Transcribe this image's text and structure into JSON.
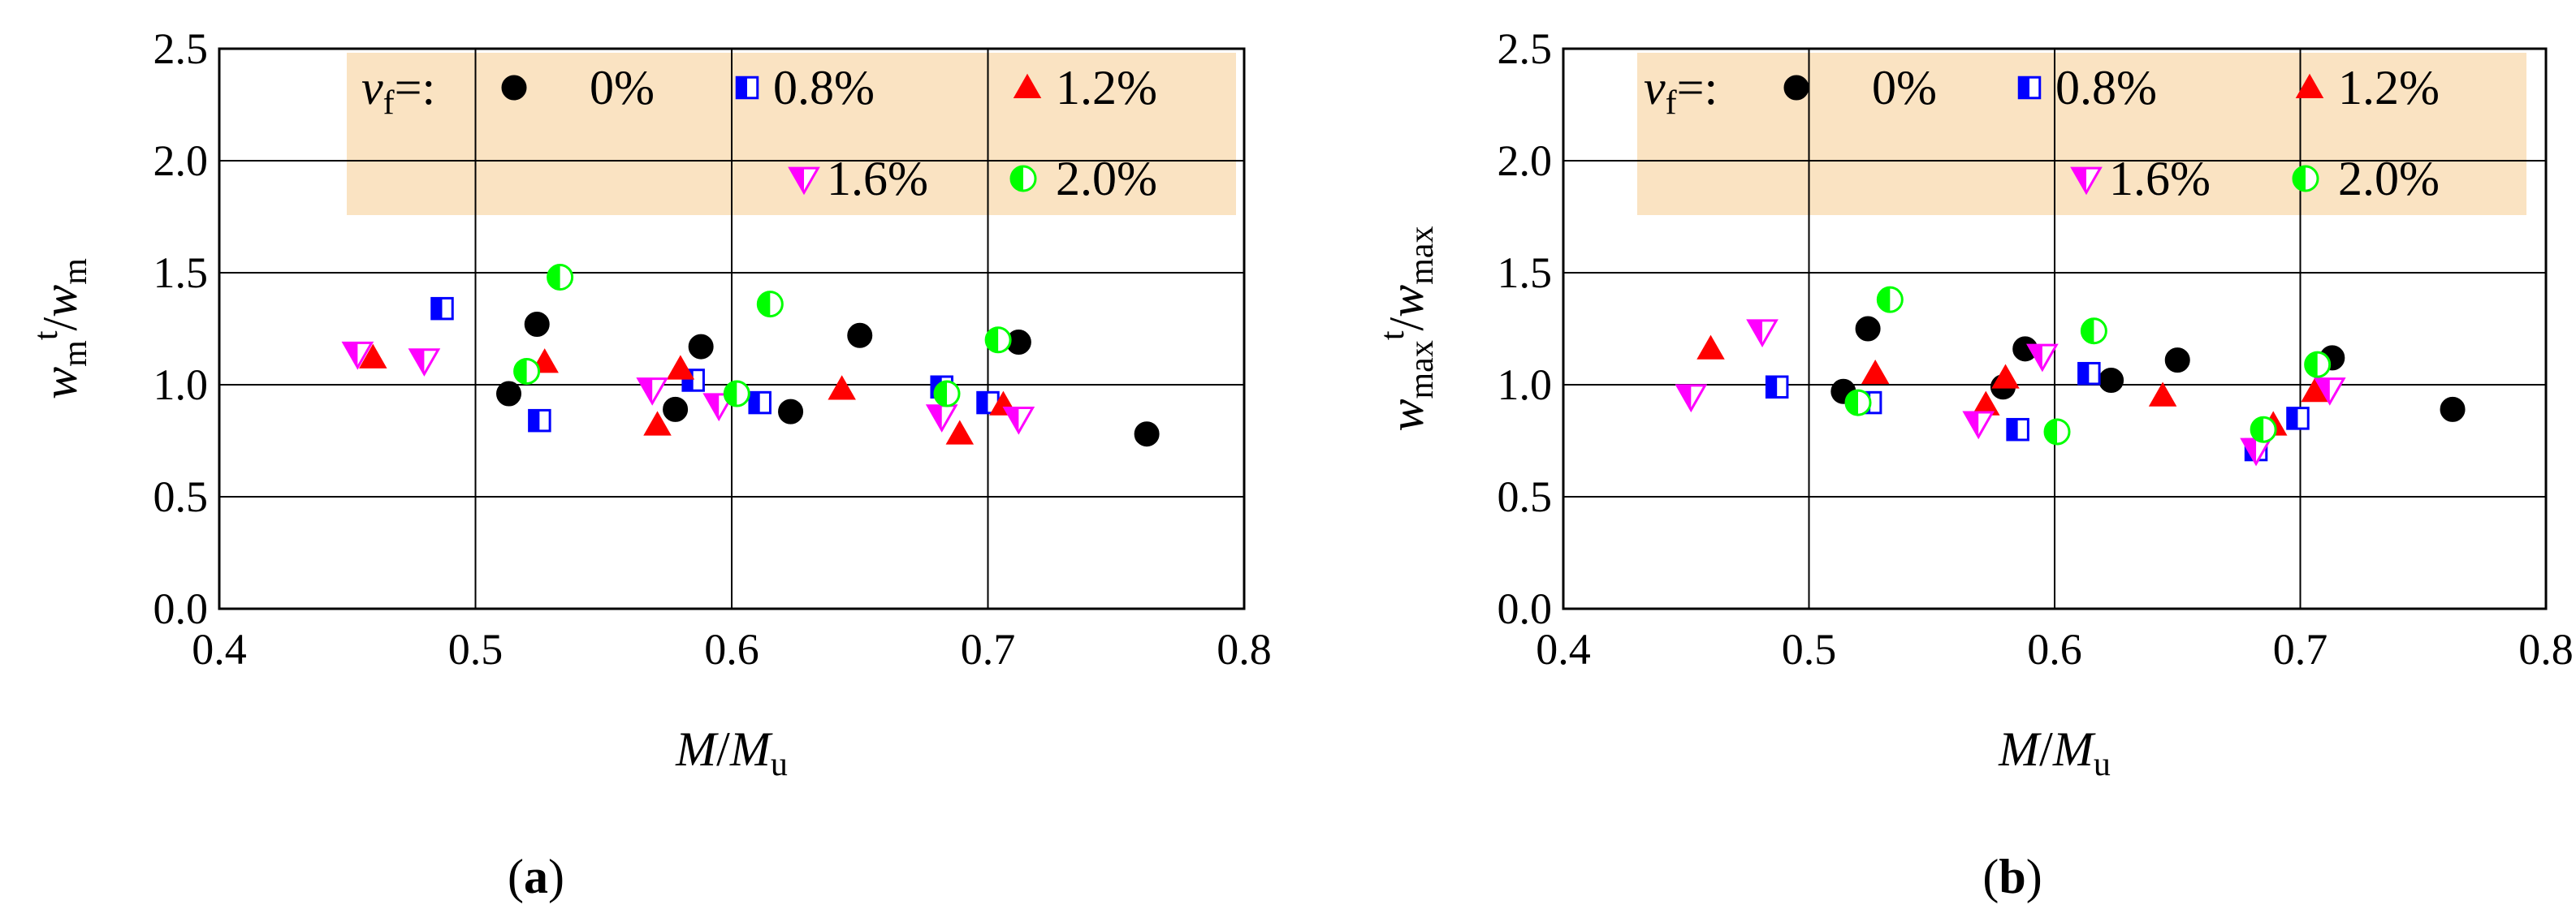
{
  "panels": [
    {
      "label_open": "(",
      "label_letter": "a",
      "label_close": ")"
    },
    {
      "label_open": "(",
      "label_letter": "b",
      "label_close": ")"
    }
  ],
  "legend": {
    "prefix_main": "v",
    "prefix_sub": "f",
    "prefix_eq": "=:",
    "entries": [
      {
        "label": "0%",
        "marker": "circle-filled",
        "color": "#000000"
      },
      {
        "label": "0.8%",
        "marker": "square-half",
        "color": "#0000ff"
      },
      {
        "label": "1.2%",
        "marker": "triangle-up-filled",
        "color": "#ff0000"
      },
      {
        "label": "1.6%",
        "marker": "triangle-down-half",
        "color": "#ff00ff"
      },
      {
        "label": "2.0%",
        "marker": "circle-half",
        "color": "#00ff00"
      }
    ],
    "background": "#fae3c2"
  },
  "chart_data": [
    {
      "type": "scatter",
      "panel": "a",
      "xlabel_main": "M",
      "xlabel_slash": "/",
      "xlabel_main2": "M",
      "xlabel_sub": "u",
      "ylabel_main": "w",
      "ylabel_sub": "m",
      "ylabel_sup": "t",
      "ylabel_slash": "/",
      "ylabel_main2": "w",
      "ylabel_sub2": "m",
      "xlim": [
        0.4,
        0.8
      ],
      "ylim": [
        0.0,
        2.5
      ],
      "xticks": [
        "0.4",
        "0.5",
        "0.6",
        "0.7",
        "0.8"
      ],
      "yticks": [
        "0.0",
        "0.5",
        "1.0",
        "1.5",
        "2.0",
        "2.5"
      ],
      "grid": true,
      "series": [
        {
          "name": "0%",
          "points": [
            [
              0.513,
              0.96
            ],
            [
              0.524,
              1.27
            ],
            [
              0.578,
              0.89
            ],
            [
              0.588,
              1.17
            ],
            [
              0.623,
              0.88
            ],
            [
              0.65,
              1.22
            ],
            [
              0.712,
              1.19
            ],
            [
              0.762,
              0.78
            ]
          ]
        },
        {
          "name": "0.8%",
          "points": [
            [
              0.487,
              1.34
            ],
            [
              0.525,
              0.84
            ],
            [
              0.585,
              1.02
            ],
            [
              0.611,
              0.92
            ],
            [
              0.682,
              0.99
            ],
            [
              0.7,
              0.92
            ]
          ]
        },
        {
          "name": "1.2%",
          "points": [
            [
              0.46,
              1.12
            ],
            [
              0.527,
              1.1
            ],
            [
              0.571,
              0.82
            ],
            [
              0.58,
              1.07
            ],
            [
              0.643,
              0.98
            ],
            [
              0.689,
              0.78
            ],
            [
              0.706,
              0.91
            ]
          ]
        },
        {
          "name": "1.6%",
          "points": [
            [
              0.454,
              1.14
            ],
            [
              0.48,
              1.11
            ],
            [
              0.569,
              0.98
            ],
            [
              0.595,
              0.91
            ],
            [
              0.682,
              0.86
            ],
            [
              0.712,
              0.85
            ]
          ]
        },
        {
          "name": "2.0%",
          "points": [
            [
              0.52,
              1.06
            ],
            [
              0.533,
              1.48
            ],
            [
              0.602,
              0.96
            ],
            [
              0.615,
              1.36
            ],
            [
              0.684,
              0.96
            ],
            [
              0.704,
              1.2
            ]
          ]
        }
      ]
    },
    {
      "type": "scatter",
      "panel": "b",
      "xlabel_main": "M",
      "xlabel_slash": "/",
      "xlabel_main2": "M",
      "xlabel_sub": "u",
      "ylabel_main": "w",
      "ylabel_sub": "max",
      "ylabel_sup": "t",
      "ylabel_slash": "/",
      "ylabel_main2": "w",
      "ylabel_sub2": "max",
      "xlim": [
        0.4,
        0.8
      ],
      "ylim": [
        0.0,
        2.5
      ],
      "xticks": [
        "0.4",
        "0.5",
        "0.6",
        "0.7",
        "0.8"
      ],
      "yticks": [
        "0.0",
        "0.5",
        "1.0",
        "1.5",
        "2.0",
        "2.5"
      ],
      "grid": true,
      "series": [
        {
          "name": "0%",
          "points": [
            [
              0.514,
              0.97
            ],
            [
              0.524,
              1.25
            ],
            [
              0.579,
              0.99
            ],
            [
              0.588,
              1.16
            ],
            [
              0.623,
              1.02
            ],
            [
              0.65,
              1.11
            ],
            [
              0.713,
              1.12
            ],
            [
              0.762,
              0.89
            ]
          ]
        },
        {
          "name": "0.8%",
          "points": [
            [
              0.487,
              0.99
            ],
            [
              0.525,
              0.92
            ],
            [
              0.585,
              0.8
            ],
            [
              0.614,
              1.05
            ],
            [
              0.682,
              0.71
            ],
            [
              0.699,
              0.85
            ]
          ]
        },
        {
          "name": "1.2%",
          "points": [
            [
              0.46,
              1.16
            ],
            [
              0.527,
              1.05
            ],
            [
              0.572,
              0.91
            ],
            [
              0.58,
              1.03
            ],
            [
              0.644,
              0.95
            ],
            [
              0.689,
              0.82
            ],
            [
              0.706,
              0.97
            ]
          ]
        },
        {
          "name": "1.6%",
          "points": [
            [
              0.452,
              0.95
            ],
            [
              0.481,
              1.24
            ],
            [
              0.569,
              0.83
            ],
            [
              0.595,
              1.13
            ],
            [
              0.682,
              0.71
            ],
            [
              0.712,
              0.98
            ]
          ]
        },
        {
          "name": "2.0%",
          "points": [
            [
              0.52,
              0.92
            ],
            [
              0.533,
              1.38
            ],
            [
              0.601,
              0.79
            ],
            [
              0.616,
              1.24
            ],
            [
              0.685,
              0.8
            ],
            [
              0.707,
              1.09
            ]
          ]
        }
      ]
    }
  ]
}
